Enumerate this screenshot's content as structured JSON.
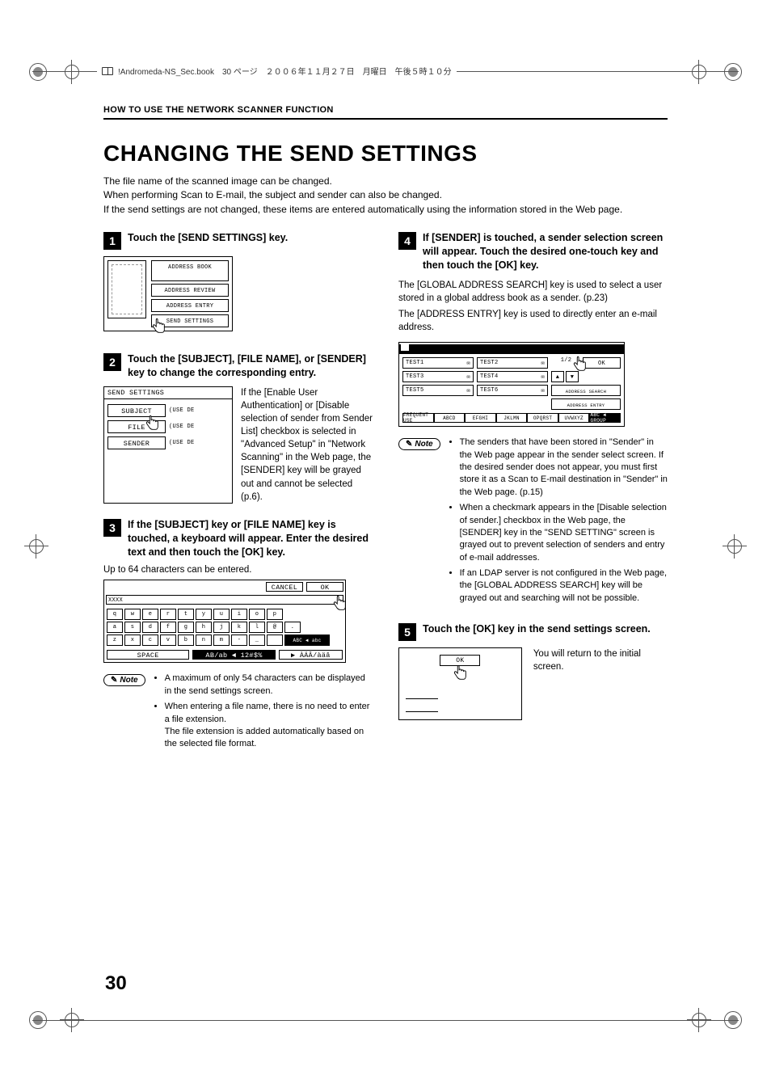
{
  "meta": {
    "header_line": "!Andromeda-NS_Sec.book　30 ページ　２００６年１１月２７日　月曜日　午後５時１０分"
  },
  "section_header": "HOW TO USE THE NETWORK SCANNER FUNCTION",
  "title": "CHANGING THE SEND SETTINGS",
  "intro": [
    "The file name of the scanned image can be changed.",
    "When performing Scan to E-mail, the subject and sender can also be changed.",
    "If the send settings are not changed, these items are entered automatically using the information stored in the Web page."
  ],
  "steps": {
    "s1": {
      "num": "1",
      "title": "Touch the [SEND SETTINGS] key.",
      "fig": {
        "buttons": [
          "ADDRESS BOOK",
          "ADDRESS REVIEW",
          "ADDRESS ENTRY",
          "SEND SETTINGS"
        ]
      }
    },
    "s2": {
      "num": "2",
      "title": "Touch the [SUBJECT], [FILE NAME], or [SENDER] key to change the corresponding entry.",
      "fig": {
        "header": "SEND SETTINGS",
        "rows": [
          {
            "label": "SUBJECT",
            "hint": "(USE DE"
          },
          {
            "label": "FILE",
            "hint": "(USE DE"
          },
          {
            "label": "SENDER",
            "hint": "(USE DE"
          }
        ]
      },
      "para": "If the [Enable User Authentication] or [Disable selection of sender from Sender List] checkbox is selected in \"Advanced Setup\" in \"Network Scanning\" in the Web page, the [SENDER] key will be grayed out and cannot be selected (p.6)."
    },
    "s3": {
      "num": "3",
      "title": "If the [SUBJECT] key or [FILE NAME] key is touched, a keyboard will appear. Enter the desired text and then touch the [OK] key.",
      "sub": "Up to 64 characters can be entered.",
      "fig": {
        "top_buttons": [
          "CANCEL",
          "OK"
        ],
        "entry_prefix": "XXXX",
        "rows": [
          [
            "q",
            "w",
            "e",
            "r",
            "t",
            "y",
            "u",
            "i",
            "o",
            "p"
          ],
          [
            "a",
            "s",
            "d",
            "f",
            "g",
            "h",
            "j",
            "k",
            "l",
            "@",
            "."
          ],
          [
            "z",
            "x",
            "c",
            "v",
            "b",
            "n",
            "m",
            "-",
            "_",
            ""
          ]
        ],
        "mode_key": "ABC ◄ abc",
        "bottom": [
          "SPACE",
          "AB/ab ◄ 12#$%",
          "▶ ÀÄÂ/àäâ"
        ]
      },
      "note": [
        "A maximum of only 54 characters can be displayed in the send settings screen.",
        "When entering a file name, there is no need to enter a file extension.\nThe file extension is added automatically based on the selected file format."
      ]
    },
    "s4": {
      "num": "4",
      "title": "If [SENDER] is touched, a sender selection screen will appear. Touch the desired one-touch key and then touch the [OK] key.",
      "para1": "The [GLOBAL ADDRESS SEARCH] key is used to select a user stored in a global address book as a sender. (p.23)",
      "para2": "The [ADDRESS ENTRY] key is used to directly enter an e-mail address.",
      "fig": {
        "items": [
          "TEST1",
          "TEST2",
          "TEST3",
          "TEST4",
          "TEST5",
          "TEST6"
        ],
        "page_ind": "1/2",
        "side": [
          "OK",
          "ADDRESS SEARCH",
          "ADDRESS ENTRY"
        ],
        "tabs": [
          "FREQUENT USE",
          "ABCD",
          "EFGHI",
          "JKLMN",
          "OPQRST",
          "UVWXYZ",
          "ABC ◄ GROUP"
        ]
      },
      "note": [
        "The senders that have been stored in \"Sender\" in the Web page appear in the sender select screen. If the desired sender does not appear, you must first store it as a Scan to E-mail destination in \"Sender\" in the Web page. (p.15)",
        "When a checkmark appears in the [Disable selection of sender.] checkbox in the Web page, the [SENDER] key in the \"SEND SETTING\" screen is grayed out to prevent selection of senders and entry of e-mail addresses.",
        "If an LDAP server is not configured in the Web page, the [GLOBAL ADDRESS SEARCH] key will be grayed out and searching will not be possible."
      ]
    },
    "s5": {
      "num": "5",
      "title": "Touch the [OK] key in the send settings screen.",
      "fig": {
        "ok": "OK"
      },
      "para": "You will return to the initial screen."
    }
  },
  "note_label": "Note",
  "page_number": "30"
}
